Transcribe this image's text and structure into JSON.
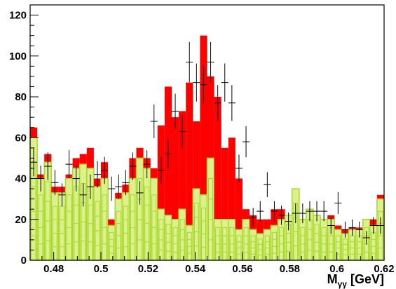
{
  "chart_data": {
    "type": "bar",
    "title": "",
    "xlabel": "M",
    "xlabel_sub": "γγ",
    "xlabel_unit": " [GeV]",
    "ylabel": "",
    "xlim": [
      0.47,
      0.62
    ],
    "ylim": [
      0,
      125
    ],
    "bin_width": 0.003,
    "x_ticks": [
      "0.48",
      "0.5",
      "0.52",
      "0.54",
      "0.56",
      "0.58",
      "0.6",
      "0.62"
    ],
    "x_tick_values": [
      0.48,
      0.5,
      0.52,
      0.54,
      0.56,
      0.58,
      0.6,
      0.62
    ],
    "y_ticks": [
      "0",
      "20",
      "40",
      "60",
      "80",
      "100",
      "120"
    ],
    "y_tick_values": [
      0,
      20,
      40,
      60,
      80,
      100,
      120
    ],
    "grid": false,
    "legend": "none",
    "colors": {
      "signal": "#ff0000",
      "background": "#ddf08c",
      "background_edge": "#a6d92f",
      "points": "#000000"
    },
    "series": [
      {
        "kind": "stacked-histogram",
        "total": [
          65,
          42,
          52,
          36,
          36,
          42,
          50,
          52,
          55,
          40,
          48,
          20,
          33,
          37,
          50,
          55,
          50,
          45,
          66,
          85,
          70,
          73,
          87,
          68,
          110,
          90,
          80,
          55,
          60,
          40,
          25,
          22,
          20,
          20,
          25,
          25,
          22,
          35,
          20,
          25,
          22,
          20,
          22,
          17,
          15,
          16,
          16,
          20,
          20,
          32
        ],
        "background": [
          60,
          40,
          48,
          33,
          33,
          40,
          45,
          47,
          45,
          36,
          40,
          17,
          30,
          33,
          40,
          50,
          45,
          40,
          25,
          22,
          20,
          25,
          17,
          35,
          32,
          50,
          20,
          20,
          20,
          15,
          20,
          15,
          13,
          15,
          17,
          20,
          22,
          35,
          20,
          25,
          22,
          20,
          20,
          15,
          13,
          15,
          15,
          20,
          17,
          30
        ]
      },
      {
        "kind": "data-points",
        "x": [
          0.4715,
          0.4745,
          0.4775,
          0.4805,
          0.4835,
          0.4865,
          0.4895,
          0.4925,
          0.4955,
          0.4985,
          0.5015,
          0.5045,
          0.5075,
          0.5105,
          0.5135,
          0.5165,
          0.5195,
          0.5225,
          0.5255,
          0.5285,
          0.5315,
          0.5345,
          0.5375,
          0.5405,
          0.5435,
          0.5465,
          0.5495,
          0.5525,
          0.5555,
          0.5585,
          0.5615,
          0.5645,
          0.5675,
          0.5705,
          0.5735,
          0.5765,
          0.5795,
          0.5825,
          0.5855,
          0.5885,
          0.5915,
          0.5945,
          0.5975,
          0.6005,
          0.6035,
          0.6065,
          0.6095,
          0.6125,
          0.6155,
          0.6185
        ],
        "y": [
          48,
          40,
          46,
          38,
          32,
          47,
          40,
          32,
          36,
          42,
          44,
          35,
          36,
          38,
          46,
          33,
          47,
          68,
          44,
          52,
          73,
          63,
          97,
          87,
          86,
          97,
          77,
          87,
          77,
          45,
          58,
          21,
          24,
          37,
          24,
          22,
          19,
          23,
          23,
          24,
          24,
          24,
          17,
          28,
          15,
          16,
          15,
          11,
          17,
          17
        ]
      }
    ]
  }
}
